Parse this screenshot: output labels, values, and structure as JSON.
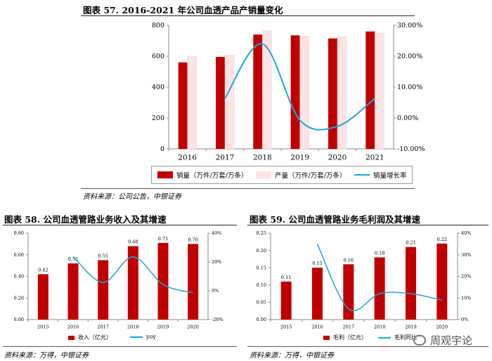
{
  "titles": {
    "fig57": "图表 57. 2016-2021 年公司血透产品产销量变化",
    "fig58": "图表 58. 公司血透管路业务收入及其增速",
    "fig59": "图表 59. 公司血透管路业务毛利润及其增速"
  },
  "sources": {
    "fig57": "资料来源：公司公告，中银证券",
    "fig58": "资料来源：万得，中银证券",
    "fig59": "资料来源：万得，中银证券"
  },
  "watermark": {
    "text": "周观宇论",
    "icon": "wechat-icon"
  },
  "colors": {
    "bar": "#C00000",
    "bar2": "#FCE4E4",
    "line": "#1AA7E0"
  },
  "chart_data": [
    {
      "id": "fig57",
      "type": "bar",
      "categories": [
        "2016",
        "2017",
        "2018",
        "2019",
        "2020",
        "2021"
      ],
      "series": [
        {
          "name": "销量（万件/万套/万条）",
          "values": [
            560,
            595,
            740,
            735,
            715,
            760
          ],
          "axis": "left"
        },
        {
          "name": "产量（万件/万套/万条）",
          "values": [
            600,
            605,
            765,
            730,
            725,
            750
          ],
          "axis": "left"
        },
        {
          "name": "销量增长率",
          "type": "line",
          "values": [
            null,
            6.3,
            24.0,
            -0.7,
            -2.7,
            6.3
          ],
          "axis": "right"
        }
      ],
      "yticks": [
        "0",
        "200",
        "400",
        "600",
        "800"
      ],
      "ylim": [
        0,
        800
      ],
      "y2ticks": [
        "-10.00%",
        "0.00%",
        "10.00%",
        "20.00%",
        "30.00%"
      ],
      "y2lim": [
        -10,
        30
      ],
      "legend": "bottom"
    },
    {
      "id": "fig58",
      "type": "bar",
      "categories": [
        "2015",
        "2016",
        "2017",
        "2018",
        "2019",
        "2020"
      ],
      "series": [
        {
          "name": "收入（亿元）",
          "values": [
            0.42,
            0.52,
            0.55,
            0.68,
            0.71,
            0.7
          ],
          "labels": [
            "0.42",
            "0.52",
            "0.55",
            "0.68",
            "0.71",
            "0.70"
          ],
          "axis": "left"
        },
        {
          "name": "yoy",
          "type": "line",
          "values": [
            null,
            23.8,
            5.8,
            23.6,
            4.4,
            -1.4
          ],
          "axis": "right"
        }
      ],
      "yticks": [
        "0.00",
        "0.20",
        "0.40",
        "0.60",
        "0.80"
      ],
      "ylim": [
        0,
        0.8
      ],
      "y2ticks": [
        "-20%",
        "0%",
        "20%",
        "40%"
      ],
      "y2lim": [
        -20,
        40
      ],
      "legend": "bottom"
    },
    {
      "id": "fig59",
      "type": "bar",
      "categories": [
        "2015",
        "2016",
        "2017",
        "2018",
        "2019",
        "2020"
      ],
      "series": [
        {
          "name": "毛利（亿元）",
          "values": [
            0.11,
            0.15,
            0.16,
            0.18,
            0.21,
            0.22
          ],
          "labels": [
            "0.11",
            "0.15",
            "0.16",
            "0.18",
            "0.21",
            "0.22"
          ],
          "axis": "left"
        },
        {
          "name": "毛利同比",
          "type": "line",
          "values": [
            null,
            35,
            5,
            12,
            12,
            9
          ],
          "axis": "right"
        }
      ],
      "yticks": [
        "0.00",
        "0.05",
        "0.10",
        "0.15",
        "0.20",
        "0.25"
      ],
      "ylim": [
        0,
        0.25
      ],
      "y2ticks": [
        "0%",
        "10%",
        "20%",
        "30%",
        "40%"
      ],
      "y2lim": [
        0,
        40
      ],
      "legend": "bottom"
    }
  ]
}
